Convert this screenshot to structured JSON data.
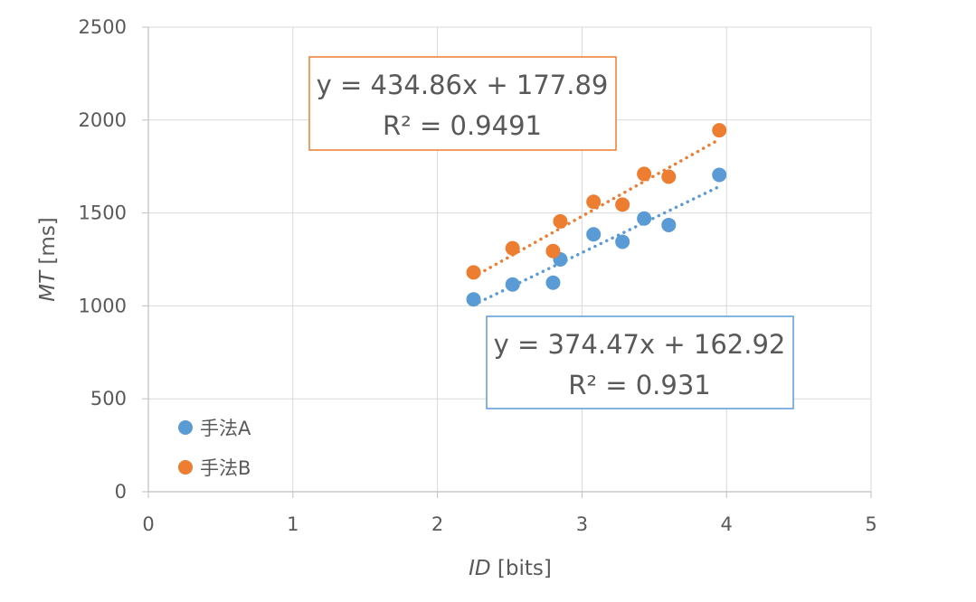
{
  "chart_data": {
    "type": "scatter",
    "x_axis": {
      "label_italic": "ID",
      "label_rest": " [bits]",
      "range": [
        0,
        5
      ],
      "ticks": [
        "0",
        "1",
        "2",
        "3",
        "4",
        "5"
      ]
    },
    "y_axis": {
      "label_italic": "MT",
      "label_rest": " [ms]",
      "range": [
        0,
        2500
      ],
      "ticks": [
        "0",
        "500",
        "1000",
        "1500",
        "2000",
        "2500"
      ]
    },
    "grid": true,
    "legend_position": "bottom-left",
    "series": [
      {
        "name": "手法A",
        "color": "#5B9BD5",
        "points": [
          [
            2.25,
            1035
          ],
          [
            2.52,
            1115
          ],
          [
            2.8,
            1125
          ],
          [
            2.85,
            1250
          ],
          [
            3.08,
            1385
          ],
          [
            3.28,
            1345
          ],
          [
            3.43,
            1470
          ],
          [
            3.6,
            1435
          ],
          [
            3.95,
            1705
          ]
        ],
        "trendline": {
          "slope": 374.47,
          "intercept": 162.92,
          "x_range": [
            2.25,
            3.95
          ],
          "style": "dotted"
        },
        "equation": "y = 374.47x + 162.92",
        "r_squared": "R² = 0.931"
      },
      {
        "name": "手法B",
        "color": "#ED7D31",
        "points": [
          [
            2.25,
            1180
          ],
          [
            2.52,
            1310
          ],
          [
            2.8,
            1295
          ],
          [
            2.85,
            1455
          ],
          [
            3.08,
            1560
          ],
          [
            3.28,
            1545
          ],
          [
            3.43,
            1710
          ],
          [
            3.6,
            1695
          ],
          [
            3.95,
            1945
          ]
        ],
        "trendline": {
          "slope": 434.86,
          "intercept": 177.89,
          "x_range": [
            2.25,
            3.95
          ],
          "style": "dotted"
        },
        "equation": "y = 434.86x + 177.89",
        "r_squared": "R² = 0.9491"
      }
    ]
  }
}
